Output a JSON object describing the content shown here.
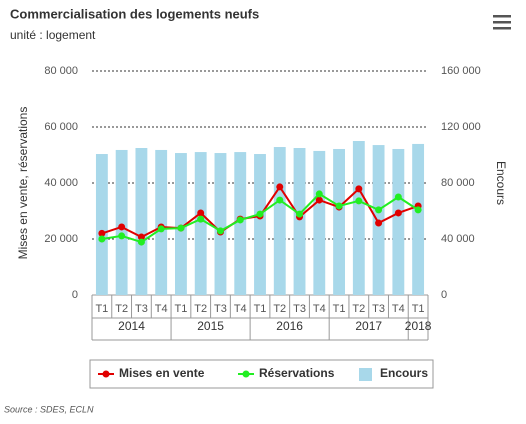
{
  "chart_data": {
    "type": "combo",
    "title": "Commercialisation des logements neufs",
    "subtitle": "unité : logement",
    "y_label": "Mises en vente, réservations",
    "y2_label": "Encours",
    "source": "Source : SDES, ECLN",
    "categories": [
      "T1",
      "T2",
      "T3",
      "T4",
      "T1",
      "T2",
      "T3",
      "T4",
      "T1",
      "T2",
      "T3",
      "T4",
      "T1",
      "T2",
      "T3",
      "T4",
      "T1"
    ],
    "groups": [
      {
        "label": "2014",
        "span": 4
      },
      {
        "label": "2015",
        "span": 4
      },
      {
        "label": "2016",
        "span": 4
      },
      {
        "label": "2017",
        "span": 4
      },
      {
        "label": "2018",
        "span": 1
      }
    ],
    "ylim": [
      0,
      80000
    ],
    "yticks": [
      0,
      {
        "value": 20000,
        "label": "20 000"
      },
      {
        "value": 40000,
        "label": "40 000"
      },
      {
        "value": 60000,
        "label": "60 000"
      },
      {
        "value": 80000,
        "label": "80 000"
      }
    ],
    "y2lim": [
      0,
      160000
    ],
    "y2ticks": [
      0,
      {
        "value": 40000,
        "label": "40 000"
      },
      {
        "value": 80000,
        "label": "80 000"
      },
      {
        "value": 120000,
        "label": "120 000"
      },
      {
        "value": 160000,
        "label": "160 000"
      }
    ],
    "grid": true,
    "legend": "bottom",
    "series": [
      {
        "name": "Mises en vente",
        "type": "line",
        "color": "#e00000",
        "values": [
          22000,
          24300,
          20700,
          24300,
          23900,
          29300,
          22500,
          27100,
          28200,
          38600,
          27900,
          33900,
          31400,
          37900,
          25700,
          29300,
          31800
        ]
      },
      {
        "name": "Réservations",
        "type": "line",
        "color": "#22ee22",
        "values": [
          20000,
          21100,
          18900,
          23600,
          23900,
          27100,
          22900,
          26800,
          28900,
          33900,
          28900,
          36100,
          31800,
          33600,
          30400,
          35000,
          30400
        ]
      },
      {
        "name": "Encours",
        "type": "bar",
        "axis": "y2",
        "color": "#a8d8ea",
        "values": [
          100700,
          103600,
          105000,
          103600,
          101400,
          102100,
          101400,
          102100,
          100700,
          105700,
          105000,
          102900,
          104300,
          110000,
          107100,
          104300,
          107900
        ]
      }
    ]
  }
}
